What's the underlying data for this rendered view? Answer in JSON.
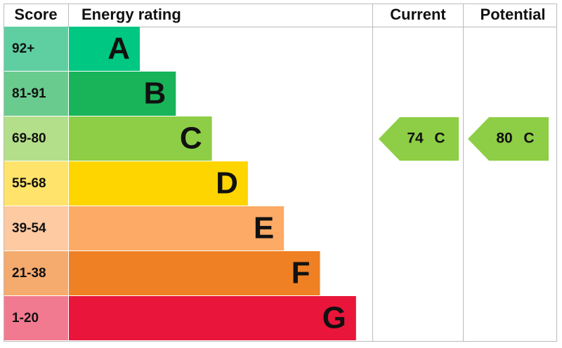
{
  "header": {
    "score": "Score",
    "rating": "Energy rating",
    "current": "Current",
    "potential": "Potential"
  },
  "bands": [
    {
      "score": "92+",
      "letter": "A",
      "color": "#00c781",
      "light": "#5fcfa2"
    },
    {
      "score": "81-91",
      "letter": "B",
      "color": "#19b459",
      "light": "#6acb8e"
    },
    {
      "score": "69-80",
      "letter": "C",
      "color": "#8dce46",
      "light": "#b4df8a"
    },
    {
      "score": "55-68",
      "letter": "D",
      "color": "#ffd500",
      "light": "#ffe36a"
    },
    {
      "score": "39-54",
      "letter": "E",
      "color": "#fcaa65",
      "light": "#fdcaa2"
    },
    {
      "score": "21-38",
      "letter": "F",
      "color": "#ef8023",
      "light": "#f5aa6e"
    },
    {
      "score": "1-20",
      "letter": "G",
      "color": "#e9153b",
      "light": "#f27a90"
    }
  ],
  "current": {
    "score": 74,
    "band": "C"
  },
  "potential": {
    "score": 80,
    "band": "C"
  }
}
